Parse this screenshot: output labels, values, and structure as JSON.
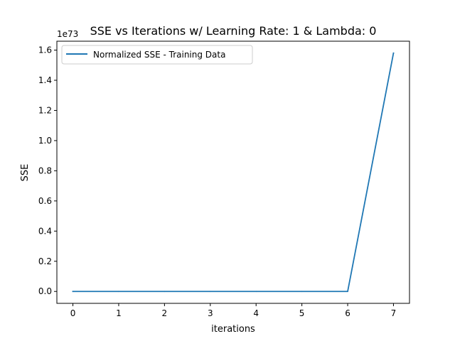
{
  "chart_data": {
    "type": "line",
    "title": "SSE vs Iterations w/ Learning Rate: 1 & Lambda: 0",
    "xlabel": "iterations",
    "ylabel": "SSE",
    "y_offset_text": "1e73",
    "x": [
      0,
      1,
      2,
      3,
      4,
      5,
      6,
      7
    ],
    "xticks": [
      "0",
      "1",
      "2",
      "3",
      "4",
      "5",
      "6",
      "7"
    ],
    "yticks": [
      "0.0",
      "0.2",
      "0.4",
      "0.6",
      "0.8",
      "1.0",
      "1.2",
      "1.4",
      "1.6"
    ],
    "ytick_values": [
      0.0,
      0.2,
      0.4,
      0.6,
      0.8,
      1.0,
      1.2,
      1.4,
      1.6
    ],
    "xlim": [
      -0.35,
      7.35
    ],
    "ylim": [
      -0.079,
      1.659
    ],
    "y_scale_exponent": 73,
    "series": [
      {
        "name": "Normalized SSE - Training Data",
        "color": "#1f77b4",
        "values": [
          0,
          0,
          0,
          0,
          0,
          0,
          0,
          1.58
        ]
      }
    ],
    "legend_position": "top-left",
    "grid": false
  }
}
